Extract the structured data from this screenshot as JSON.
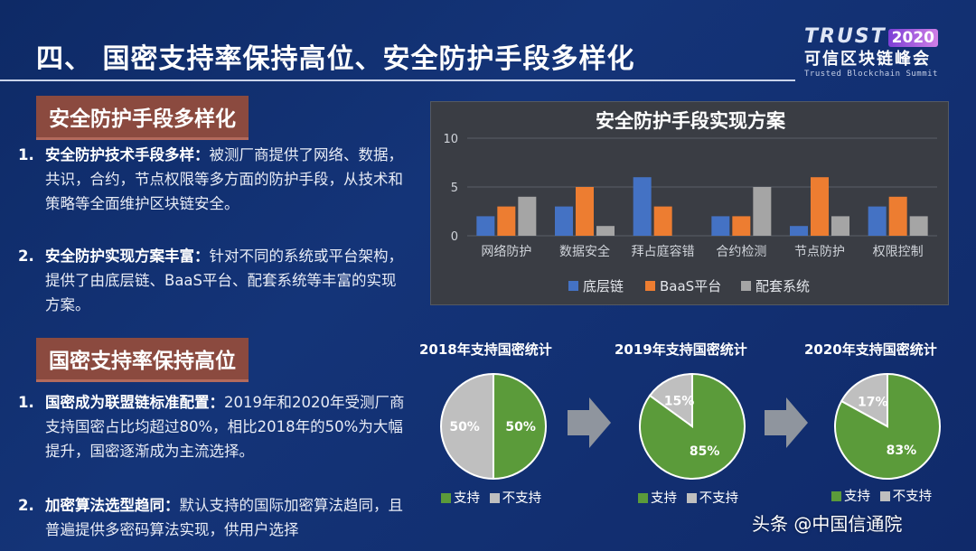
{
  "header": {
    "title": "四、 国密支持率保持高位、安全防护手段多样化",
    "logo_trust": "TRUST",
    "logo_year": "2020",
    "logo_cn": "可信区块链峰会",
    "logo_en": "Trusted Blockchain Summit"
  },
  "section1": {
    "heading": "安全防护手段多样化",
    "items": [
      {
        "num": "1.",
        "lead": "安全防护技术手段多样：",
        "text": "被测厂商提供了网络、数据，共识，合约，节点权限等多方面的防护手段，从技术和策略等全面维护区块链安全。"
      },
      {
        "num": "2.",
        "lead": "安全防护实现方案丰富：",
        "text": "针对不同的系统或平台架构，提供了由底层链、BaaS平台、配套系统等丰富的实现方案。"
      }
    ]
  },
  "section2": {
    "heading": "国密支持率保持高位",
    "items": [
      {
        "num": "1.",
        "lead": "国密成为联盟链标准配置：",
        "text": "2019年和2020年受测厂商支持国密占比均超过80%，相比2018年的50%为大幅提升，国密逐渐成为主流选择。"
      },
      {
        "num": "2.",
        "lead": "加密算法选型趋同：",
        "text": "默认支持的国际加密算法趋同，且普遍提供多密码算法实现，供用户选择"
      }
    ]
  },
  "watermark": "头条 @中国信通院",
  "colors": {
    "blue": "#4472c4",
    "orange": "#ed7d31",
    "gray": "#a5a5a5",
    "green": "#5b9b3a",
    "lightgray": "#bfbfbf"
  },
  "chart_data": [
    {
      "type": "bar",
      "title": "安全防护手段实现方案",
      "categories": [
        "网络防护",
        "数据安全",
        "拜占庭容错",
        "合约检测",
        "节点防护",
        "权限控制"
      ],
      "series": [
        {
          "name": "底层链",
          "values": [
            2,
            3,
            6,
            2,
            1,
            3
          ]
        },
        {
          "name": "BaaS平台",
          "values": [
            3,
            5,
            3,
            2,
            6,
            4
          ]
        },
        {
          "name": "配套系统",
          "values": [
            4,
            1,
            0,
            5,
            2,
            2
          ]
        }
      ],
      "ylim": [
        0,
        10
      ],
      "yticks": [
        "0",
        "5",
        "10"
      ],
      "legend": "bottom",
      "grid": true
    },
    {
      "type": "pie",
      "title": "2018年支持国密统计",
      "labels": [
        "支持",
        "不支持"
      ],
      "values": [
        50,
        50
      ],
      "value_labels": [
        "50%",
        "50%"
      ],
      "legend": "bottom"
    },
    {
      "type": "pie",
      "title": "2019年支持国密统计",
      "labels": [
        "支持",
        "不支持"
      ],
      "values": [
        85,
        15
      ],
      "value_labels": [
        "85%",
        "15%"
      ],
      "legend": "bottom"
    },
    {
      "type": "pie",
      "title": "2020年支持国密统计",
      "labels": [
        "支持",
        "不支持"
      ],
      "values": [
        83,
        17
      ],
      "value_labels": [
        "83%",
        "17%"
      ],
      "legend": "bottom"
    }
  ]
}
